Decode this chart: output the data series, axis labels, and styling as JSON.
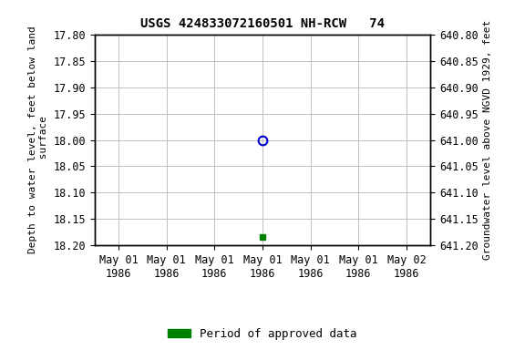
{
  "title": "USGS 424833072160501 NH-RCW   74",
  "ylabel_left": "Depth to water level, feet below land\n surface",
  "ylabel_right": "Groundwater level above NGVD 1929, feet",
  "ylim_left": [
    17.8,
    18.2
  ],
  "ylim_right_top": 641.2,
  "ylim_right_bottom": 640.8,
  "yticks_left": [
    17.8,
    17.85,
    17.9,
    17.95,
    18.0,
    18.05,
    18.1,
    18.15,
    18.2
  ],
  "yticks_right": [
    641.2,
    641.15,
    641.1,
    641.05,
    641.0,
    640.95,
    640.9,
    640.85,
    640.8
  ],
  "xtick_labels": [
    "May 01\n1986",
    "May 01\n1986",
    "May 01\n1986",
    "May 01\n1986",
    "May 01\n1986",
    "May 01\n1986",
    "May 02\n1986"
  ],
  "xtick_positions": [
    0,
    1,
    2,
    3,
    4,
    5,
    6
  ],
  "xdata_circle": [
    3
  ],
  "ydata_circle": [
    18.0
  ],
  "xdata_square": [
    3
  ],
  "ydata_square": [
    18.185
  ],
  "circle_color": "#0000cc",
  "square_color": "#008000",
  "legend_label": "Period of approved data",
  "legend_color": "#008000",
  "background_color": "#ffffff",
  "grid_color": "#c0c0c0",
  "title_fontsize": 10,
  "axis_label_fontsize": 8,
  "tick_fontsize": 8.5,
  "legend_fontsize": 9
}
